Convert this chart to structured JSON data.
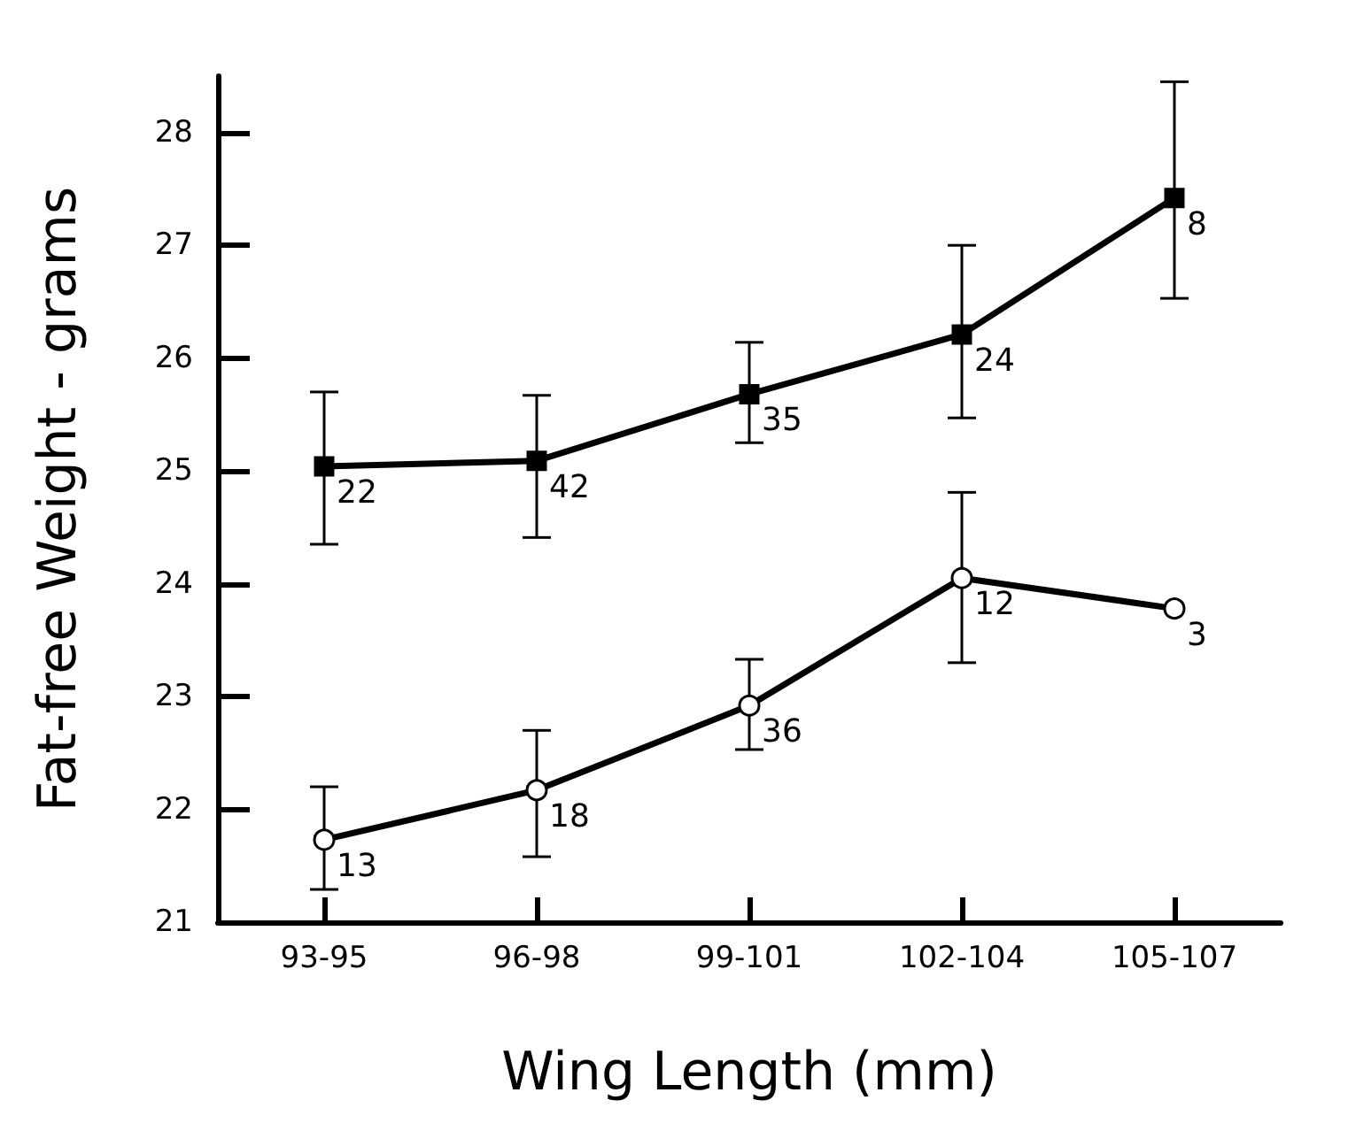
{
  "chart_data": {
    "type": "line",
    "xlabel": "Wing Length (mm)",
    "ylabel": "Fat-free Weight - grams",
    "categories": [
      "93-95",
      "96-98",
      "99-101",
      "102-104",
      "105-107"
    ],
    "series": [
      {
        "color": "#000000",
        "marker": "square",
        "values": [
          25.04,
          25.09,
          25.68,
          26.21,
          27.42
        ],
        "errors": [
          [
            24.35,
            25.7
          ],
          [
            24.41,
            25.67
          ],
          [
            25.25,
            26.14
          ],
          [
            25.47,
            27.0
          ],
          [
            26.53,
            28.45
          ]
        ]
      },
      {
        "color": "#000000",
        "marker": "circle",
        "values": [
          21.73,
          22.17,
          22.92,
          24.05,
          23.78
        ],
        "errors": [
          [
            21.29,
            22.2
          ],
          [
            21.58,
            22.7
          ],
          [
            22.53,
            23.33
          ],
          [
            23.3,
            24.81
          ],
          null
        ]
      }
    ],
    "ylim": [
      21,
      28.5
    ],
    "yticks": [
      21,
      22,
      23,
      24,
      25,
      26,
      27,
      28
    ],
    "line_style": "solid",
    "annotations": [
      {
        "text": "22",
        "x": "93-95",
        "y": 25.04
      },
      {
        "text": "42",
        "x": "96-98",
        "y": 25.09
      },
      {
        "text": "35",
        "x": "99-101",
        "y": 25.68
      },
      {
        "text": "24",
        "x": "102-104",
        "y": 26.21
      },
      {
        "text": "8",
        "x": "105-107",
        "y": 27.42
      },
      {
        "text": "13",
        "x": "93-95",
        "y": 21.73
      },
      {
        "text": "18",
        "x": "96-98",
        "y": 22.17
      },
      {
        "text": "36",
        "x": "99-101",
        "y": 22.92
      },
      {
        "text": "12",
        "x": "102-104",
        "y": 24.05
      },
      {
        "text": "3",
        "x": "105-107",
        "y": 23.78
      }
    ]
  }
}
